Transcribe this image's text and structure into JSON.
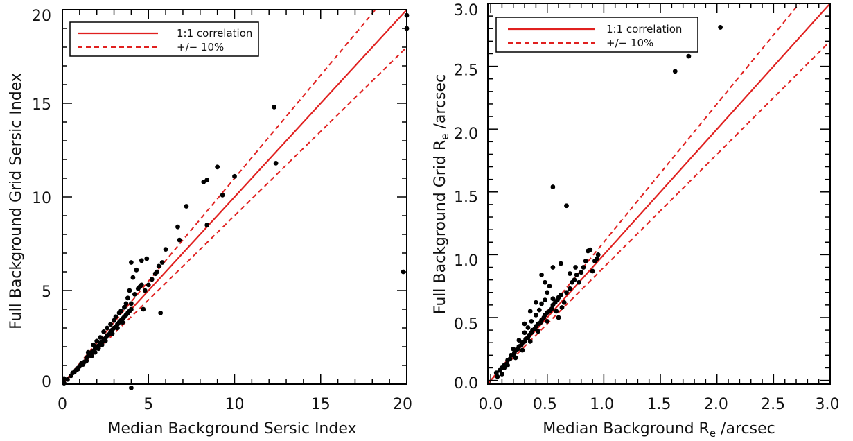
{
  "colors": {
    "fit_line": "#e0201f",
    "points": "#000000",
    "axes": "#000000",
    "background": "#ffffff"
  },
  "chart_data": [
    {
      "type": "scatter",
      "xlabel": "Median Background Sersic Index",
      "ylabel": "Full Background Grid Sersic Index",
      "xlim": [
        0,
        20
      ],
      "ylim": [
        0,
        20
      ],
      "xticks": [
        0,
        5,
        10,
        15,
        20
      ],
      "yticks": [
        0,
        5,
        10,
        15,
        20
      ],
      "xtick_labels": [
        "0",
        "5",
        "10",
        "15",
        "20"
      ],
      "ytick_labels": [
        "0",
        "5",
        "10",
        "15",
        "20"
      ],
      "legend": {
        "position": "top-left",
        "entries": [
          {
            "label": "1:1 correlation",
            "style": "solid"
          },
          {
            "label": "+/− 10%",
            "style": "dashed"
          }
        ]
      },
      "lines": [
        {
          "label": "1:1 correlation",
          "slope": 1.0
        },
        {
          "label": "+/− 10%",
          "slope": 1.1
        },
        {
          "label": "+/− 10%",
          "slope": 0.9
        }
      ],
      "points": [
        [
          0.1,
          0.05
        ],
        [
          0.3,
          0.25
        ],
        [
          0.5,
          0.45
        ],
        [
          0.6,
          0.6
        ],
        [
          0.8,
          0.75
        ],
        [
          0.9,
          0.85
        ],
        [
          1.0,
          0.95
        ],
        [
          1.1,
          1.1
        ],
        [
          1.2,
          1.15
        ],
        [
          1.3,
          1.2
        ],
        [
          1.4,
          1.4
        ],
        [
          1.5,
          1.5
        ],
        [
          1.6,
          1.55
        ],
        [
          1.7,
          1.7
        ],
        [
          1.8,
          1.75
        ],
        [
          1.9,
          1.9
        ],
        [
          2.0,
          2.0
        ],
        [
          2.1,
          2.05
        ],
        [
          2.2,
          2.2
        ],
        [
          2.3,
          2.25
        ],
        [
          2.4,
          2.4
        ],
        [
          2.5,
          2.45
        ],
        [
          2.6,
          2.6
        ],
        [
          2.7,
          2.65
        ],
        [
          2.8,
          2.8
        ],
        [
          2.9,
          2.9
        ],
        [
          3.0,
          3.0
        ],
        [
          3.1,
          3.05
        ],
        [
          3.2,
          3.2
        ],
        [
          3.3,
          3.3
        ],
        [
          3.4,
          3.4
        ],
        [
          3.5,
          3.5
        ],
        [
          3.6,
          3.6
        ],
        [
          3.7,
          3.7
        ],
        [
          3.8,
          3.8
        ],
        [
          3.9,
          3.9
        ],
        [
          4.0,
          4.0
        ],
        [
          1.5,
          1.7
        ],
        [
          1.8,
          2.1
        ],
        [
          2.0,
          2.3
        ],
        [
          2.2,
          2.5
        ],
        [
          2.4,
          2.8
        ],
        [
          2.6,
          3.0
        ],
        [
          2.8,
          3.2
        ],
        [
          3.0,
          3.4
        ],
        [
          3.1,
          3.6
        ],
        [
          3.3,
          3.8
        ],
        [
          3.4,
          3.9
        ],
        [
          3.6,
          4.1
        ],
        [
          3.7,
          4.3
        ],
        [
          3.5,
          3.3
        ],
        [
          3.2,
          3.0
        ],
        [
          2.9,
          2.7
        ],
        [
          2.5,
          2.3
        ],
        [
          2.3,
          2.1
        ],
        [
          2.1,
          1.9
        ],
        [
          1.9,
          1.7
        ],
        [
          1.7,
          1.5
        ],
        [
          1.4,
          1.25
        ],
        [
          1.2,
          1.05
        ],
        [
          0.9,
          0.8
        ],
        [
          0.7,
          0.65
        ],
        [
          3.8,
          4.6
        ],
        [
          3.9,
          5.0
        ],
        [
          4.0,
          4.3
        ],
        [
          4.2,
          4.8
        ],
        [
          4.4,
          5.1
        ],
        [
          4.5,
          5.2
        ],
        [
          4.6,
          5.3
        ],
        [
          4.8,
          5.0
        ],
        [
          5.0,
          5.3
        ],
        [
          5.2,
          5.6
        ],
        [
          5.4,
          5.9
        ],
        [
          5.5,
          6.0
        ],
        [
          5.6,
          6.3
        ],
        [
          5.8,
          6.5
        ],
        [
          4.6,
          6.6
        ],
        [
          4.9,
          6.7
        ],
        [
          4.0,
          6.5
        ],
        [
          4.3,
          6.1
        ],
        [
          4.1,
          5.7
        ],
        [
          4.7,
          4.0
        ],
        [
          5.7,
          3.8
        ],
        [
          4.0,
          -0.2
        ],
        [
          6.0,
          7.2
        ],
        [
          6.8,
          7.7
        ],
        [
          6.7,
          8.4
        ],
        [
          7.2,
          9.5
        ],
        [
          8.2,
          10.8
        ],
        [
          8.4,
          10.9
        ],
        [
          8.4,
          8.5
        ],
        [
          9.0,
          11.6
        ],
        [
          9.3,
          10.1
        ],
        [
          10.0,
          11.1
        ],
        [
          12.3,
          14.8
        ],
        [
          12.4,
          11.8
        ],
        [
          19.8,
          6.0
        ],
        [
          20.0,
          19.7
        ],
        [
          20.0,
          19.0
        ],
        [
          0.1,
          0.3
        ]
      ]
    },
    {
      "type": "scatter",
      "xlabel": "Median Background R",
      "xlabel_subscript": "e",
      "xlabel_suffix": " /arcsec",
      "ylabel": "Full Background Grid R",
      "ylabel_subscript": "e",
      "ylabel_suffix": " /arcsec",
      "xlim": [
        0,
        3.0
      ],
      "ylim": [
        0,
        3.0
      ],
      "xticks": [
        0,
        0.5,
        1.0,
        1.5,
        2.0,
        2.5,
        3.0
      ],
      "yticks": [
        0,
        0.5,
        1.0,
        1.5,
        2.0,
        2.5,
        3.0
      ],
      "xtick_labels": [
        "0.0",
        "0.5",
        "1.0",
        "1.5",
        "2.0",
        "2.5",
        "3.0"
      ],
      "ytick_labels": [
        "0.0",
        "0.5",
        "1.0",
        "1.5",
        "2.0",
        "2.5",
        "3.0"
      ],
      "legend": {
        "position": "top-left",
        "entries": [
          {
            "label": "1:1 correlation",
            "style": "solid"
          },
          {
            "label": "+/− 10%",
            "style": "dashed"
          }
        ]
      },
      "lines": [
        {
          "label": "1:1 correlation",
          "slope": 1.0
        },
        {
          "label": "+/− 10%",
          "slope": 1.1
        },
        {
          "label": "+/− 10%",
          "slope": 0.9
        }
      ],
      "points": [
        [
          0.05,
          0.06
        ],
        [
          0.08,
          0.08
        ],
        [
          0.1,
          0.1
        ],
        [
          0.12,
          0.12
        ],
        [
          0.14,
          0.13
        ],
        [
          0.15,
          0.16
        ],
        [
          0.17,
          0.17
        ],
        [
          0.18,
          0.2
        ],
        [
          0.2,
          0.2
        ],
        [
          0.21,
          0.22
        ],
        [
          0.22,
          0.24
        ],
        [
          0.24,
          0.25
        ],
        [
          0.25,
          0.27
        ],
        [
          0.27,
          0.28
        ],
        [
          0.28,
          0.3
        ],
        [
          0.3,
          0.31
        ],
        [
          0.31,
          0.33
        ],
        [
          0.33,
          0.34
        ],
        [
          0.34,
          0.36
        ],
        [
          0.36,
          0.38
        ],
        [
          0.37,
          0.4
        ],
        [
          0.39,
          0.41
        ],
        [
          0.4,
          0.43
        ],
        [
          0.42,
          0.45
        ],
        [
          0.44,
          0.46
        ],
        [
          0.45,
          0.48
        ],
        [
          0.47,
          0.5
        ],
        [
          0.48,
          0.52
        ],
        [
          0.5,
          0.54
        ],
        [
          0.52,
          0.55
        ],
        [
          0.54,
          0.57
        ],
        [
          0.55,
          0.6
        ],
        [
          0.57,
          0.62
        ],
        [
          0.59,
          0.64
        ],
        [
          0.6,
          0.66
        ],
        [
          0.62,
          0.68
        ],
        [
          0.2,
          0.25
        ],
        [
          0.25,
          0.32
        ],
        [
          0.3,
          0.38
        ],
        [
          0.33,
          0.42
        ],
        [
          0.36,
          0.47
        ],
        [
          0.4,
          0.52
        ],
        [
          0.43,
          0.56
        ],
        [
          0.45,
          0.61
        ],
        [
          0.48,
          0.64
        ],
        [
          0.5,
          0.7
        ],
        [
          0.52,
          0.75
        ],
        [
          0.55,
          0.65
        ],
        [
          0.58,
          0.55
        ],
        [
          0.6,
          0.5
        ],
        [
          0.63,
          0.58
        ],
        [
          0.65,
          0.62
        ],
        [
          0.67,
          0.7
        ],
        [
          0.7,
          0.73
        ],
        [
          0.72,
          0.78
        ],
        [
          0.74,
          0.8
        ],
        [
          0.76,
          0.84
        ],
        [
          0.78,
          0.78
        ],
        [
          0.8,
          0.86
        ],
        [
          0.82,
          0.9
        ],
        [
          0.84,
          0.95
        ],
        [
          0.86,
          1.03
        ],
        [
          0.88,
          1.04
        ],
        [
          0.9,
          0.87
        ],
        [
          0.92,
          0.95
        ],
        [
          0.94,
          0.97
        ],
        [
          0.95,
          1.0
        ],
        [
          0.75,
          0.9
        ],
        [
          0.7,
          0.85
        ],
        [
          0.62,
          0.93
        ],
        [
          0.55,
          0.9
        ],
        [
          0.45,
          0.84
        ],
        [
          0.48,
          0.78
        ],
        [
          0.4,
          0.62
        ],
        [
          0.35,
          0.55
        ],
        [
          0.3,
          0.45
        ],
        [
          0.15,
          0.12
        ],
        [
          0.12,
          0.1
        ],
        [
          0.1,
          0.05
        ],
        [
          0.06,
          0.03
        ],
        [
          0.55,
          1.54
        ],
        [
          0.67,
          1.39
        ],
        [
          1.63,
          2.46
        ],
        [
          1.75,
          2.58
        ],
        [
          2.03,
          2.81
        ],
        [
          0.22,
          0.18
        ],
        [
          0.28,
          0.24
        ],
        [
          0.35,
          0.31
        ],
        [
          0.42,
          0.39
        ],
        [
          0.5,
          0.47
        ]
      ]
    }
  ]
}
